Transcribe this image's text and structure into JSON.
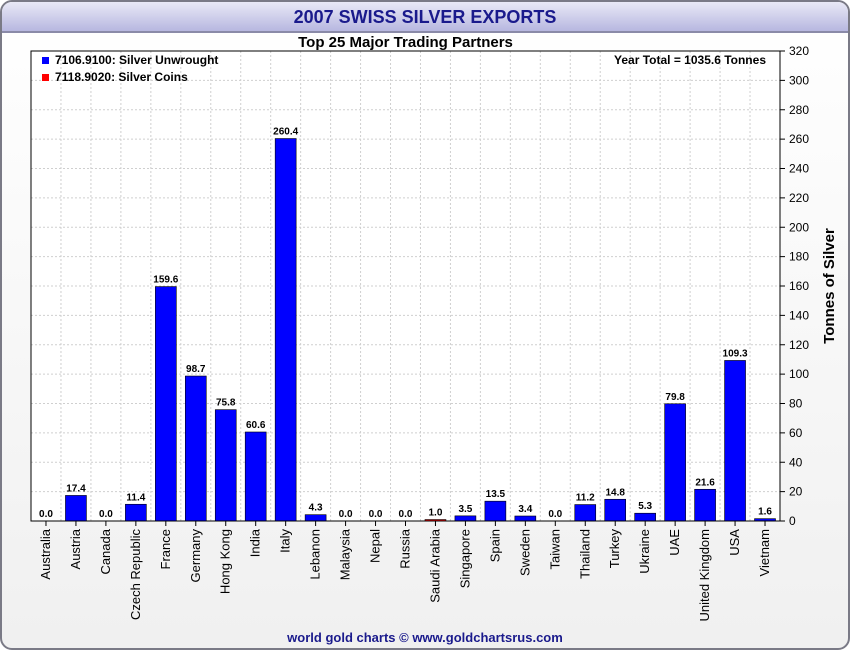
{
  "credit": "world gold charts © www.goldchartsrus.com",
  "chart_data": {
    "type": "bar",
    "title": "2007 SWISS SILVER EXPORTS",
    "subtitle": "Top 25 Major Trading Partners",
    "annotation": "Year Total = 1035.6 Tonnes",
    "ylabel": "Tonnes of Silver",
    "ylim": [
      0,
      320
    ],
    "y_ticks": [
      0,
      20,
      40,
      60,
      80,
      100,
      120,
      140,
      160,
      180,
      200,
      220,
      240,
      260,
      280,
      300,
      320
    ],
    "grid": true,
    "y_axis_side": "right",
    "legend_position": "top-left",
    "categories": [
      "Australia",
      "Austria",
      "Canada",
      "Czech Republic",
      "France",
      "Germany",
      "Hong Kong",
      "India",
      "Italy",
      "Lebanon",
      "Malaysia",
      "Nepal",
      "Russia",
      "Saudi Arabia",
      "Singapore",
      "Spain",
      "Sweden",
      "Taiwan",
      "Thailand",
      "Turkey",
      "Ukraine",
      "UAE",
      "United Kingdom",
      "USA",
      "Vietnam"
    ],
    "total_labels": [
      "0.0",
      "17.4",
      "0.0",
      "11.4",
      "159.6",
      "98.7",
      "75.8",
      "60.6",
      "260.4",
      "4.3",
      "0.0",
      "0.0",
      "0.0",
      "1.0",
      "3.5",
      "13.5",
      "3.4",
      "0.0",
      "11.2",
      "14.8",
      "5.3",
      "79.8",
      "21.6",
      "109.3",
      "1.6"
    ],
    "series": [
      {
        "name": "7106.9100: Silver Unwrought",
        "color": "#0000ff",
        "values": [
          0,
          17.4,
          0,
          11.4,
          159.6,
          98.7,
          75.8,
          60.6,
          260.4,
          4.3,
          0,
          0,
          0,
          0,
          3.5,
          13.5,
          3.4,
          0,
          11.2,
          14.8,
          5.3,
          79.8,
          21.6,
          109.3,
          1.6
        ]
      },
      {
        "name": "7118.9020: Silver Coins",
        "color": "#ff0000",
        "values": [
          0,
          0,
          0,
          0,
          0,
          0,
          0,
          0,
          0,
          0,
          0,
          0,
          0,
          1.0,
          0,
          0,
          0,
          0,
          0,
          0,
          0,
          0,
          0,
          0,
          0
        ]
      }
    ]
  }
}
